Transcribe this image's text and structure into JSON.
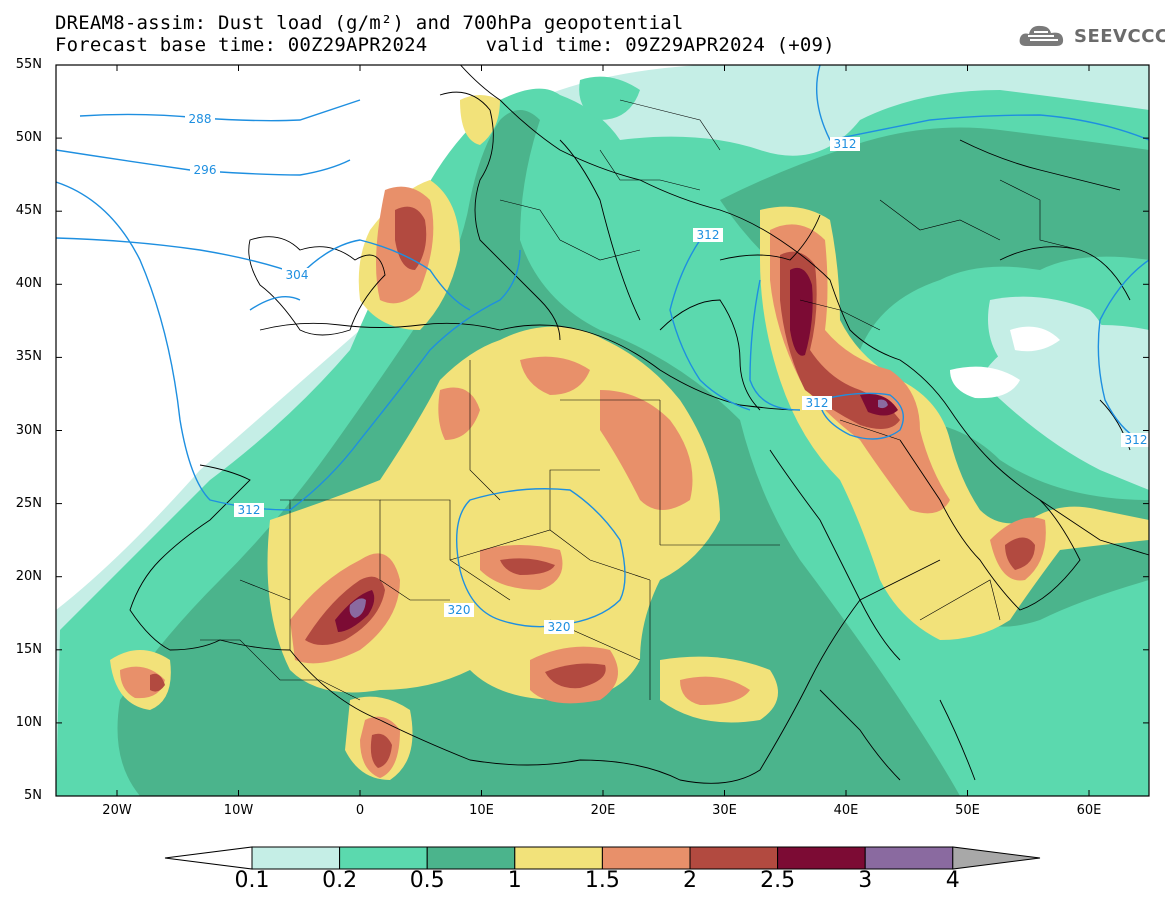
{
  "title_line1": "DREAM8-assim: Dust load (g/m²) and 700hPa geopotential",
  "title_line2": "Forecast base time: 00Z29APR2024     valid time: 09Z29APR2024 (+09)",
  "logo": {
    "text": "SEEVCCC",
    "icon": "cloud-logo-icon"
  },
  "lat_labels": [
    "55N",
    "50N",
    "45N",
    "40N",
    "35N",
    "30N",
    "25N",
    "20N",
    "15N",
    "10N",
    "5N"
  ],
  "lon_labels": [
    "20W",
    "10W",
    "0",
    "10E",
    "20E",
    "30E",
    "40E",
    "50E",
    "60E"
  ],
  "contour_labels": [
    "288",
    "296",
    "304",
    "312",
    "312",
    "312",
    "312",
    "312",
    "320",
    "320"
  ],
  "colorbar": {
    "labels": [
      "0.1",
      "0.2",
      "0.5",
      "1",
      "1.5",
      "2",
      "2.5",
      "3",
      "4"
    ],
    "colors": [
      "#c5eee6",
      "#5bd9ae",
      "#4bb48c",
      "#f2e27a",
      "#e8906a",
      "#b24a40",
      "#7c0b34",
      "#8a6aa0"
    ],
    "low_arrow_color": "#ffffff",
    "high_arrow_color": "#a8a8a8"
  },
  "contour_color": "#1e8fe0"
}
